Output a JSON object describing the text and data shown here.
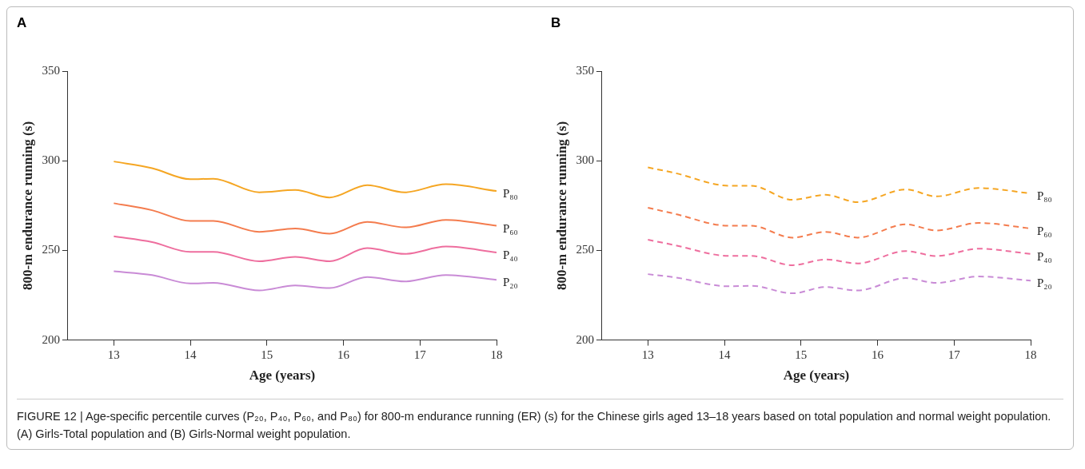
{
  "chart_data": [
    {
      "type": "line",
      "title": "A",
      "xlabel": "Age (years)",
      "ylabel": "800-m endurance running (s)",
      "xlim": [
        12.4,
        18
      ],
      "xticks": [
        13,
        14,
        15,
        16,
        17,
        18
      ],
      "ylim": [
        200,
        350
      ],
      "yticks": [
        200,
        250,
        300,
        350
      ],
      "grid": false,
      "legend": false,
      "marker": "none",
      "line_style": "solid",
      "annotations": [
        "FIGURE 12 | Age-specific percentile curves (P₂₀, P₄₀, P₆₀, and P₈₀) for 800-m endurance running (ER) (s) for the Chinese girls aged 13–18 years based on total population and normal weight population. (A) Girls-Total population and (B) Girls-Normal weight population."
      ],
      "x": [
        13,
        13.5,
        14,
        14.3,
        14.9,
        15.37,
        15.82,
        16.31,
        16.8,
        17.34,
        18
      ],
      "series": [
        {
          "name": "P₈₀",
          "color": "#f5a623",
          "values": [
            299.7,
            296,
            289.8,
            290.1,
            282.5,
            283.8,
            279.6,
            286.5,
            282.5,
            287,
            283.2
          ]
        },
        {
          "name": "P₆₀",
          "color": "#f47c4e",
          "values": [
            276.4,
            272.5,
            266.5,
            266.5,
            260.4,
            262.3,
            259.4,
            266,
            262.9,
            267.1,
            263.8
          ]
        },
        {
          "name": "P₄₀",
          "color": "#ee6e9e",
          "values": [
            257.9,
            254.7,
            249.2,
            249.2,
            244,
            246.5,
            244,
            251.3,
            248.1,
            252.2,
            248.9
          ]
        },
        {
          "name": "P₂₀",
          "color": "#c98bd6",
          "values": [
            238.4,
            236.3,
            231.6,
            231.9,
            227.7,
            230.5,
            229,
            235.2,
            232.7,
            236.3,
            233.6
          ]
        }
      ]
    },
    {
      "type": "line",
      "title": "B",
      "xlabel": "Age (years)",
      "ylabel": "800-m endurance running (s)",
      "xlim": [
        12.4,
        18
      ],
      "xticks": [
        13,
        14,
        15,
        16,
        17,
        18
      ],
      "ylim": [
        200,
        350
      ],
      "yticks": [
        200,
        250,
        300,
        350
      ],
      "grid": false,
      "legend": false,
      "marker": "none",
      "line_style": "dashed",
      "x": [
        13,
        13.34,
        14.06,
        14.35,
        14.89,
        15.32,
        15.74,
        16.37,
        16.77,
        17.32,
        18
      ],
      "series": [
        {
          "name": "P₈₀",
          "color": "#f5a623",
          "values": [
            296.4,
            293.4,
            286.2,
            286.2,
            278.3,
            281.1,
            277,
            284.1,
            280.2,
            284.9,
            281.9
          ]
        },
        {
          "name": "P₆₀",
          "color": "#f47c4e",
          "values": [
            273.9,
            270.6,
            263.8,
            263.8,
            257.2,
            260.4,
            257.2,
            264.6,
            261.2,
            265.4,
            262.3
          ]
        },
        {
          "name": "P₄₀",
          "color": "#ee6e9e",
          "values": [
            256,
            253.1,
            247,
            247,
            241.8,
            245,
            242.8,
            249.7,
            246.9,
            251,
            248.1
          ]
        },
        {
          "name": "P₂₀",
          "color": "#c98bd6",
          "values": [
            236.8,
            235.1,
            230,
            230.3,
            226.1,
            229.6,
            227.7,
            234.6,
            231.9,
            235.5,
            233.2
          ]
        }
      ]
    }
  ]
}
